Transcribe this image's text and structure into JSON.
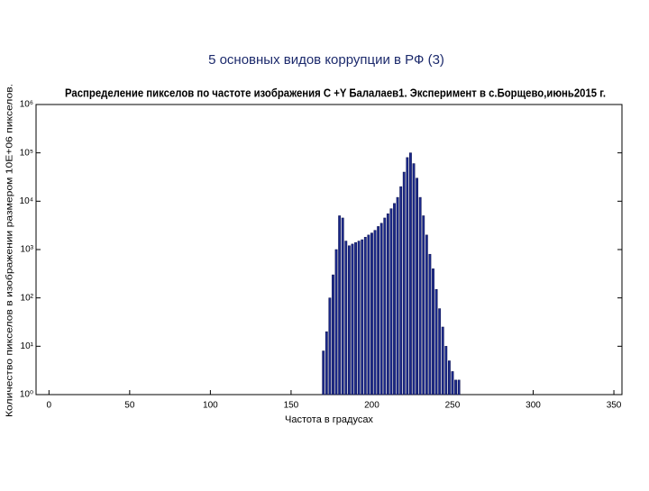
{
  "slide_title": "5 основных видов коррупции в РФ (3)",
  "chart_data": {
    "type": "bar",
    "log_y": true,
    "title": "Распределение пикселов по частоте изображения С +Y Балалаев1. Эксперимент в с.Борщево,июнь2015 г.",
    "x_label": "Частота в градусах",
    "y_label": "Количество пикселов в изображении размером 10E+06 пикселов.",
    "color": "#1c2a8c",
    "x": [
      170,
      172,
      174,
      176,
      178,
      180,
      182,
      184,
      186,
      188,
      190,
      192,
      194,
      196,
      198,
      200,
      202,
      204,
      206,
      208,
      210,
      212,
      214,
      216,
      218,
      220,
      222,
      224,
      226,
      228,
      230,
      232,
      234,
      236,
      238,
      240,
      242,
      244,
      246,
      248,
      250,
      252,
      254
    ],
    "values": [
      8,
      20,
      100,
      300,
      1000,
      5000,
      4500,
      1500,
      1200,
      1300,
      1400,
      1500,
      1600,
      1800,
      2000,
      2200,
      2500,
      3000,
      3500,
      4500,
      5500,
      7000,
      9000,
      12000,
      20000,
      40000,
      80000,
      100000,
      60000,
      30000,
      12000,
      5000,
      2000,
      800,
      400,
      150,
      60,
      25,
      10,
      5,
      3,
      2,
      2
    ],
    "xlim": [
      -8,
      355
    ],
    "xticks": [
      0,
      50,
      100,
      150,
      200,
      250,
      300,
      350
    ],
    "ylim": [
      1,
      1000000
    ],
    "yticks": [
      {
        "value": 1,
        "label": "10⁰"
      },
      {
        "value": 10,
        "label": "10¹"
      },
      {
        "value": 100,
        "label": "10²"
      },
      {
        "value": 1000,
        "label": "10³"
      },
      {
        "value": 10000,
        "label": "10⁴"
      },
      {
        "value": 100000,
        "label": "10⁵"
      },
      {
        "value": 1000000,
        "label": "10⁶"
      }
    ]
  }
}
